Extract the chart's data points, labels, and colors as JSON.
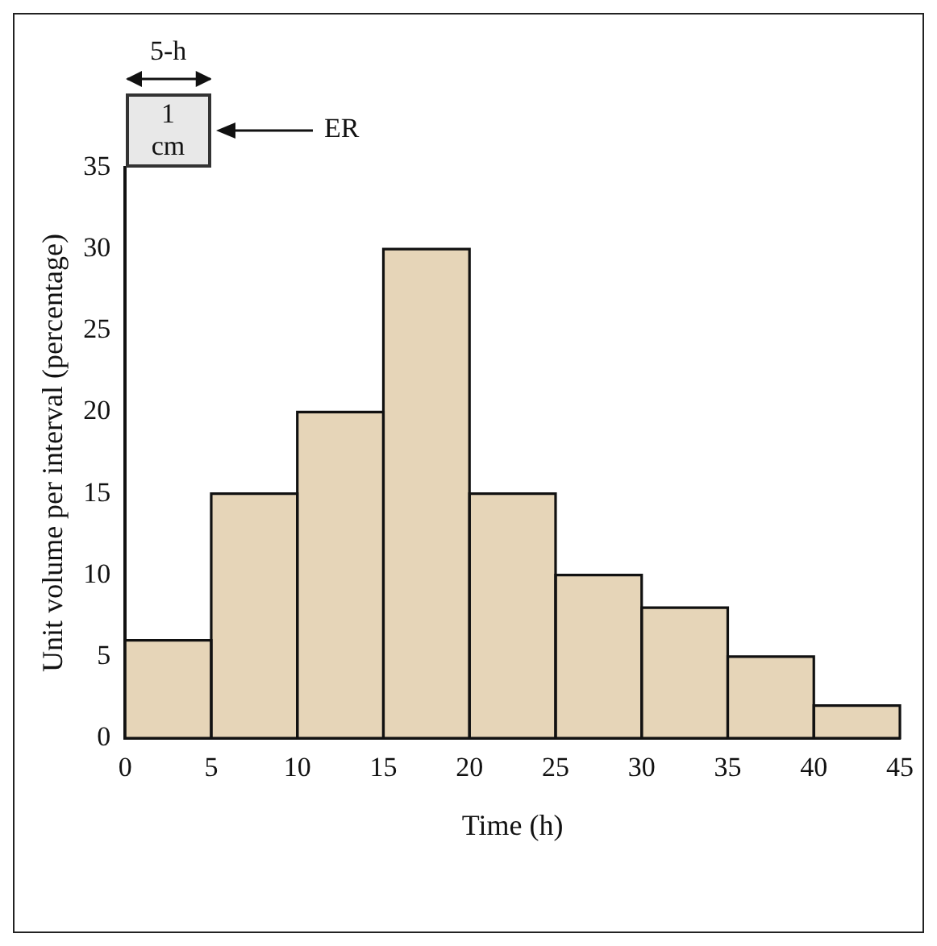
{
  "chart_data": {
    "type": "histogram",
    "xlabel": "Time (h)",
    "ylabel": "Unit volume per interval (percentage)",
    "bins": [
      0,
      5,
      10,
      15,
      20,
      25,
      30,
      35,
      40,
      45
    ],
    "values": [
      6,
      15,
      20,
      30,
      15,
      10,
      8,
      5,
      2
    ],
    "color": "#e6d5b8",
    "xlim": [
      0,
      45
    ],
    "xticks": [
      0,
      5,
      10,
      15,
      20,
      25,
      30,
      35,
      40,
      45
    ],
    "ylim": [
      0,
      35
    ],
    "yticks": [
      0,
      5,
      10,
      15,
      20,
      25,
      30,
      35
    ],
    "annotations": [
      "5-h",
      "1 cm",
      "ER"
    ]
  }
}
